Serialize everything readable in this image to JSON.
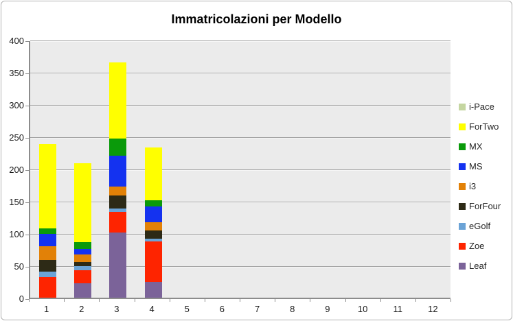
{
  "chart_data": {
    "type": "bar",
    "stacked": true,
    "title": "Immatricolazioni per Modello",
    "xlabel": "",
    "ylabel": "",
    "categories": [
      "1",
      "2",
      "3",
      "4",
      "5",
      "6",
      "7",
      "8",
      "9",
      "10",
      "11",
      "12"
    ],
    "ylim": [
      0,
      400
    ],
    "ytick_step": 50,
    "grid": "horizontal",
    "legend_position": "right",
    "plot_bg_color": "#ebebeb",
    "grid_color": "#a3a3a3",
    "axis_color": "#8c8c8c",
    "series": [
      {
        "name": "Leaf",
        "color": "#7b6399",
        "values": [
          0,
          22,
          101,
          24,
          0,
          0,
          0,
          0,
          0,
          0,
          0,
          0
        ]
      },
      {
        "name": "Zoe",
        "color": "#fe2400",
        "values": [
          32,
          21,
          32,
          63,
          0,
          0,
          0,
          0,
          0,
          0,
          0,
          0
        ]
      },
      {
        "name": "eGolf",
        "color": "#6ba3d6",
        "values": [
          8,
          6,
          5,
          5,
          0,
          0,
          0,
          0,
          0,
          0,
          0,
          0
        ]
      },
      {
        "name": "ForFour",
        "color": "#2d2a16",
        "values": [
          19,
          6,
          20,
          12,
          0,
          0,
          0,
          0,
          0,
          0,
          0,
          0
        ]
      },
      {
        "name": "i3",
        "color": "#e28107",
        "values": [
          21,
          12,
          14,
          13,
          0,
          0,
          0,
          0,
          0,
          0,
          0,
          0
        ]
      },
      {
        "name": "MS",
        "color": "#1432f0",
        "values": [
          19,
          9,
          48,
          25,
          0,
          0,
          0,
          0,
          0,
          0,
          0,
          0
        ]
      },
      {
        "name": "MX",
        "color": "#0a9a0a",
        "values": [
          8,
          10,
          27,
          9,
          0,
          0,
          0,
          0,
          0,
          0,
          0,
          0
        ]
      },
      {
        "name": "ForTwo",
        "color": "#ffff00",
        "values": [
          131,
          123,
          118,
          82,
          0,
          0,
          0,
          0,
          0,
          0,
          0,
          0
        ]
      },
      {
        "name": "i-Pace",
        "color": "#c5d6a1",
        "values": [
          0,
          0,
          0,
          0,
          0,
          0,
          0,
          0,
          0,
          0,
          0,
          0
        ]
      }
    ],
    "legend_top_to_bottom": [
      "i-Pace",
      "ForTwo",
      "MX",
      "MS",
      "i3",
      "ForFour",
      "eGolf",
      "Zoe",
      "Leaf"
    ]
  }
}
